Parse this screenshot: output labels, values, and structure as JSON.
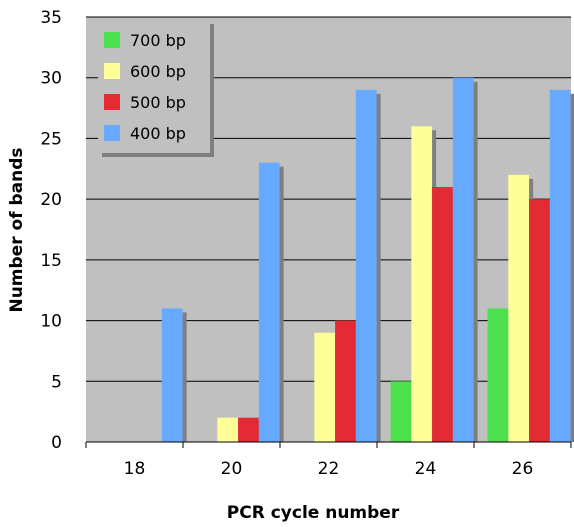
{
  "chart_data": {
    "type": "bar",
    "title": "",
    "xlabel": "PCR cycle number",
    "ylabel": "Number of bands",
    "categories": [
      "18",
      "20",
      "22",
      "24",
      "26"
    ],
    "series": [
      {
        "name": "700 bp",
        "color": "#4de04d",
        "values": [
          0,
          0,
          0,
          5,
          11
        ]
      },
      {
        "name": "600 bp",
        "color": "#ffff99",
        "values": [
          0,
          2,
          9,
          26,
          22
        ]
      },
      {
        "name": "500 bp",
        "color": "#e32b36",
        "values": [
          0,
          2,
          10,
          21,
          20
        ]
      },
      {
        "name": "400 bp",
        "color": "#66aaff",
        "values": [
          11,
          23,
          29,
          30,
          29
        ]
      }
    ],
    "ylim": [
      0,
      35
    ],
    "yticks": [
      0,
      5,
      10,
      15,
      20,
      25,
      30,
      35
    ],
    "grid": true,
    "legend_position": "top-left",
    "plot_background": "#c0c0c0",
    "shadow_color": "#7f7f7f"
  }
}
